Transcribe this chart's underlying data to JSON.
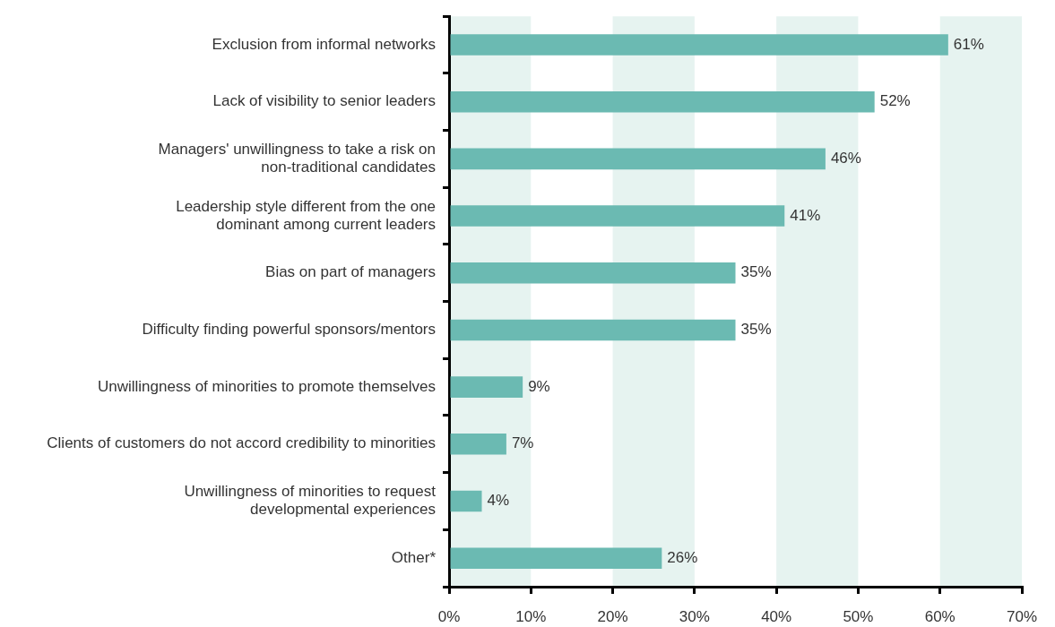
{
  "chart_data": {
    "type": "bar",
    "orientation": "horizontal",
    "categories": [
      "Exclusion from informal networks",
      "Lack of visibility to senior leaders",
      "Managers' unwillingness to take a risk on\nnon-traditional candidates",
      "Leadership style different from the one\ndominant among current leaders",
      "Bias on part of managers",
      "Difficulty finding powerful sponsors/mentors",
      "Unwillingness of minorities to promote themselves",
      "Clients of customers do not accord credibility to minorities",
      "Unwillingness of minorities to request\ndevelopmental experiences",
      "Other*"
    ],
    "values": [
      61,
      52,
      46,
      41,
      35,
      35,
      9,
      7,
      4,
      26
    ],
    "color": "#6bbab2",
    "value_labels": [
      "61%",
      "52%",
      "46%",
      "41%",
      "35%",
      "35%",
      "9%",
      "7%",
      "4%",
      "26%"
    ],
    "xlim": [
      0,
      70
    ],
    "xticks": [
      {
        "value": 0,
        "label": "0%"
      },
      {
        "value": 10,
        "label": "10%"
      },
      {
        "value": 20,
        "label": "20%"
      },
      {
        "value": 30,
        "label": "30%"
      },
      {
        "value": 40,
        "label": "40%"
      },
      {
        "value": 50,
        "label": "50%"
      },
      {
        "value": 60,
        "label": "60%"
      },
      {
        "value": 70,
        "label": "70%"
      }
    ],
    "bands": [
      {
        "axis": "x",
        "from": 0,
        "to": 10,
        "color": "#e6f3f0"
      },
      {
        "axis": "x",
        "from": 20,
        "to": 30,
        "color": "#e6f3f0"
      },
      {
        "axis": "x",
        "from": 40,
        "to": 50,
        "color": "#e6f3f0"
      },
      {
        "axis": "x",
        "from": 60,
        "to": 70,
        "color": "#e6f3f0"
      }
    ]
  }
}
